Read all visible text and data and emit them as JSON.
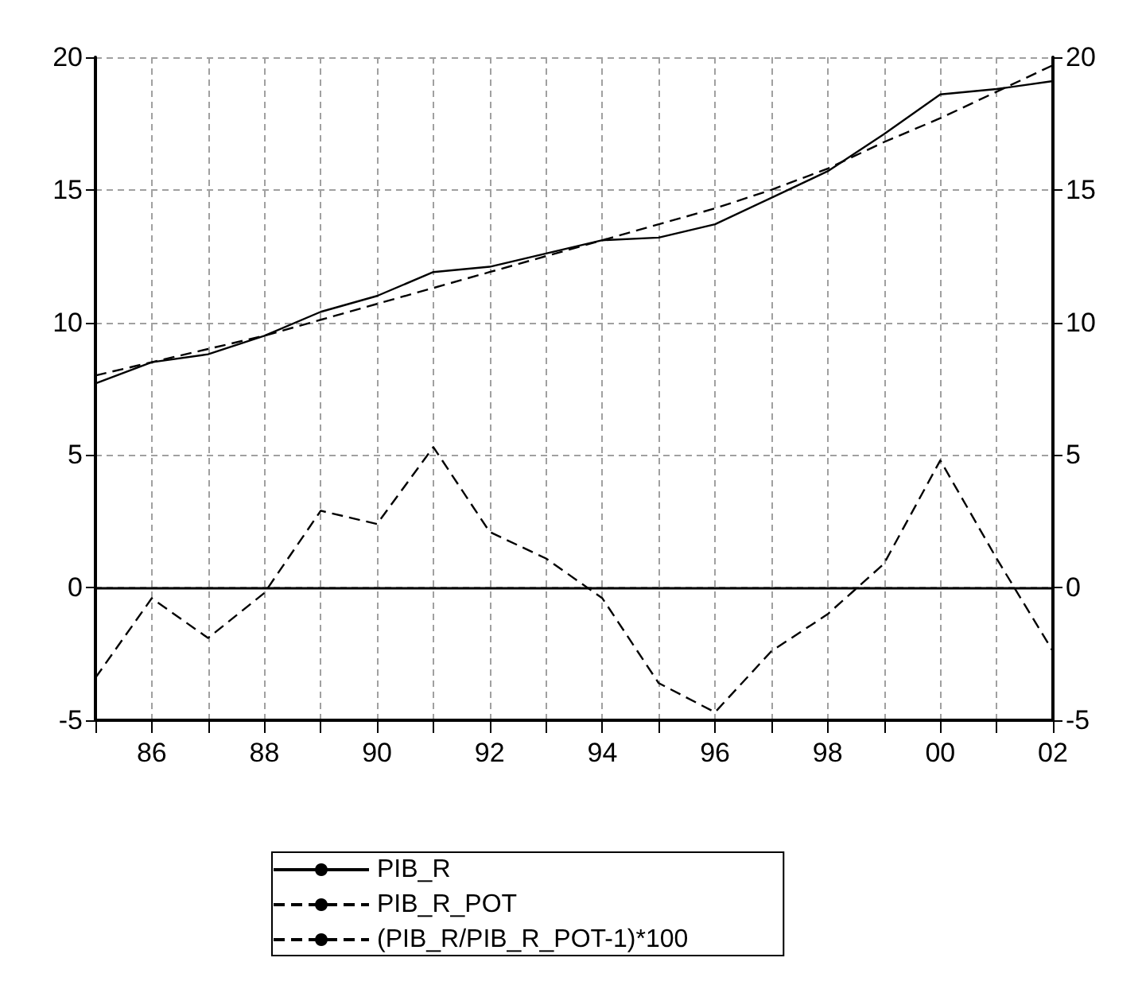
{
  "chart_data": {
    "type": "line",
    "x": [
      1985,
      1986,
      1987,
      1988,
      1989,
      1990,
      1991,
      1992,
      1993,
      1994,
      1995,
      1996,
      1997,
      1998,
      1999,
      2000,
      2001,
      2002
    ],
    "series": [
      {
        "name": "PIB_R",
        "color": "#000000",
        "line_style": "solid",
        "values": [
          7.7,
          8.5,
          8.8,
          9.5,
          10.4,
          11.0,
          11.9,
          12.1,
          12.6,
          13.1,
          13.2,
          13.7,
          14.7,
          15.7,
          17.1,
          18.6,
          18.8,
          19.1
        ]
      },
      {
        "name": "PIB_R_POT",
        "color": "#000000",
        "line_style": "dashed",
        "values": [
          8.0,
          8.5,
          9.0,
          9.5,
          10.1,
          10.7,
          11.3,
          11.9,
          12.5,
          13.1,
          13.7,
          14.3,
          15.0,
          15.8,
          16.8,
          17.7,
          18.7,
          19.7
        ]
      },
      {
        "name": "(PIB_R/PIB_R_POT-1)*100",
        "color": "#000000",
        "line_style": "dashed",
        "values": [
          -3.4,
          -0.4,
          -1.9,
          -0.2,
          2.9,
          2.4,
          5.3,
          2.1,
          1.1,
          -0.4,
          -3.6,
          -4.7,
          -2.4,
          -1.0,
          0.9,
          4.8,
          1.1,
          -2.4
        ]
      }
    ],
    "xlim": [
      1985,
      2002
    ],
    "xticks": [
      {
        "value": 1985,
        "label": null
      },
      {
        "value": 1986,
        "label": "86"
      },
      {
        "value": 1987,
        "label": null
      },
      {
        "value": 1988,
        "label": "88"
      },
      {
        "value": 1989,
        "label": null
      },
      {
        "value": 1990,
        "label": "90"
      },
      {
        "value": 1991,
        "label": null
      },
      {
        "value": 1992,
        "label": "92"
      },
      {
        "value": 1993,
        "label": null
      },
      {
        "value": 1994,
        "label": "94"
      },
      {
        "value": 1995,
        "label": null
      },
      {
        "value": 1996,
        "label": "96"
      },
      {
        "value": 1997,
        "label": null
      },
      {
        "value": 1998,
        "label": "98"
      },
      {
        "value": 1999,
        "label": null
      },
      {
        "value": 2000,
        "label": "00"
      },
      {
        "value": 2001,
        "label": null
      },
      {
        "value": 2002,
        "label": "02"
      }
    ],
    "ylim": [
      -5,
      20
    ],
    "yticks": [
      -5,
      0,
      5,
      10,
      15,
      20
    ],
    "y2lim": [
      -5,
      20
    ],
    "y2ticks": [
      -5,
      0,
      5,
      10,
      15,
      20
    ],
    "ref_lines": [
      {
        "axis": "y",
        "value": 0,
        "color": "#000000",
        "line_style": "solid"
      }
    ],
    "grid": true,
    "legend": "bottom",
    "marker": "none"
  }
}
